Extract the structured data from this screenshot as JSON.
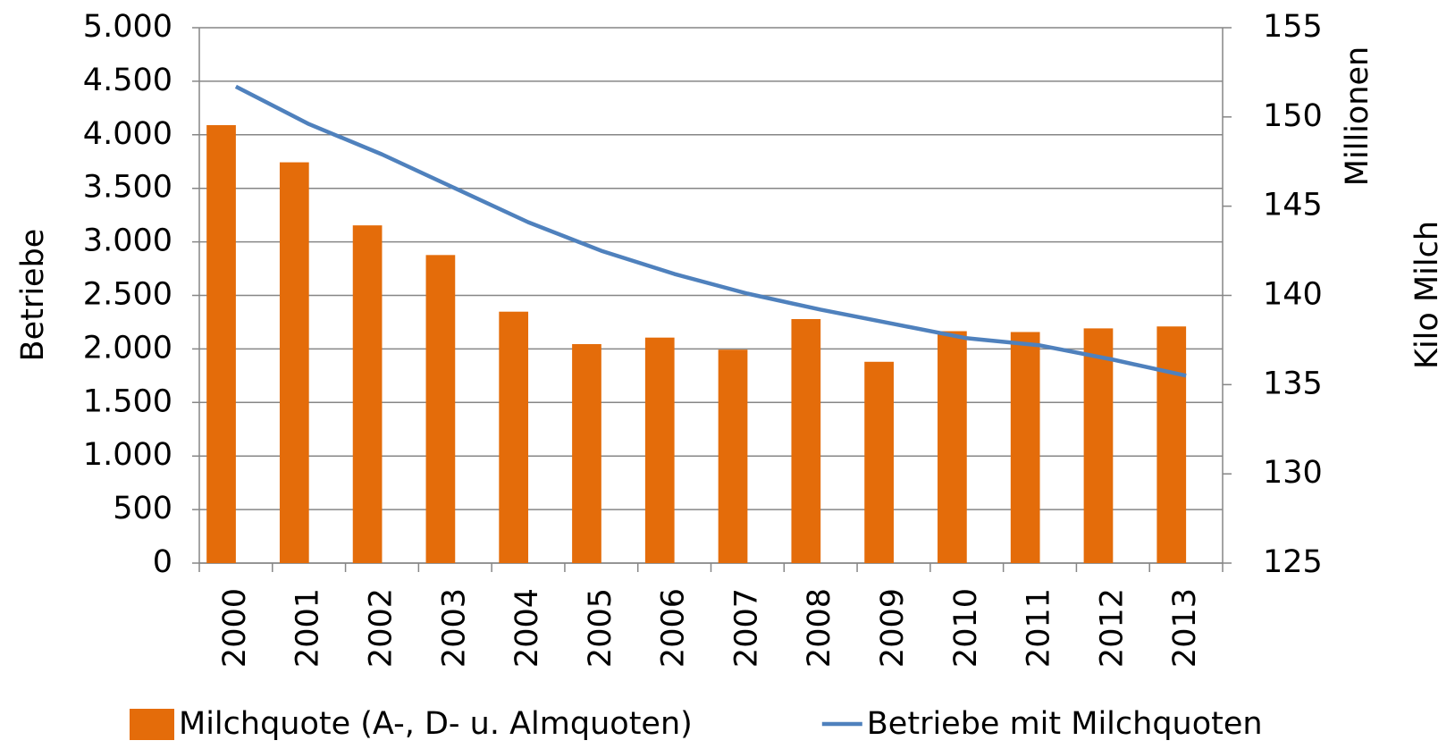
{
  "chart_data": {
    "type": "bar",
    "y_label": "Betriebe",
    "y2_label": "Kilo Milch",
    "y2_unit": "Millionen",
    "categories": [
      "2000",
      "2001",
      "2002",
      "2003",
      "2004",
      "2005",
      "2006",
      "2007",
      "2008",
      "2009",
      "2010",
      "2011",
      "2012",
      "2013"
    ],
    "series": [
      {
        "name": "Milchquote (A-, D- u. Almquoten)",
        "type": "bar",
        "axis": "y",
        "color": "#e46c0a",
        "values": [
          4090,
          3743,
          3154,
          2877,
          2348,
          2045,
          2106,
          1993,
          2279,
          1880,
          2166,
          2158,
          2192,
          2210
        ]
      },
      {
        "name": "Betriebe mit Milchquoten",
        "type": "line",
        "axis": "y2",
        "color": "#4f81bd",
        "values": [
          151.7,
          149.6,
          147.9,
          146.0,
          144.1,
          142.5,
          141.2,
          140.1,
          139.2,
          138.4,
          137.6,
          137.2,
          136.4,
          135.5
        ]
      }
    ],
    "ylim": [
      0,
      5000
    ],
    "yticks": [
      0,
      {
        "value": 500,
        "label": "500"
      },
      {
        "value": 1000,
        "label": "1.000"
      },
      {
        "value": 1500,
        "label": "1.500"
      },
      {
        "value": 2000,
        "label": "2.000"
      },
      {
        "value": 2500,
        "label": "2.500"
      },
      {
        "value": 3000,
        "label": "3.000"
      },
      {
        "value": 3500,
        "label": "3.500"
      },
      {
        "value": 4000,
        "label": "4.000"
      },
      {
        "value": 4500,
        "label": "4.500"
      },
      {
        "value": 5000,
        "label": "5.000"
      }
    ],
    "y2lim": [
      125,
      155
    ],
    "y2ticks": [
      125,
      130,
      135,
      140,
      145,
      150,
      155
    ],
    "grid": true,
    "legend": "bottom"
  }
}
